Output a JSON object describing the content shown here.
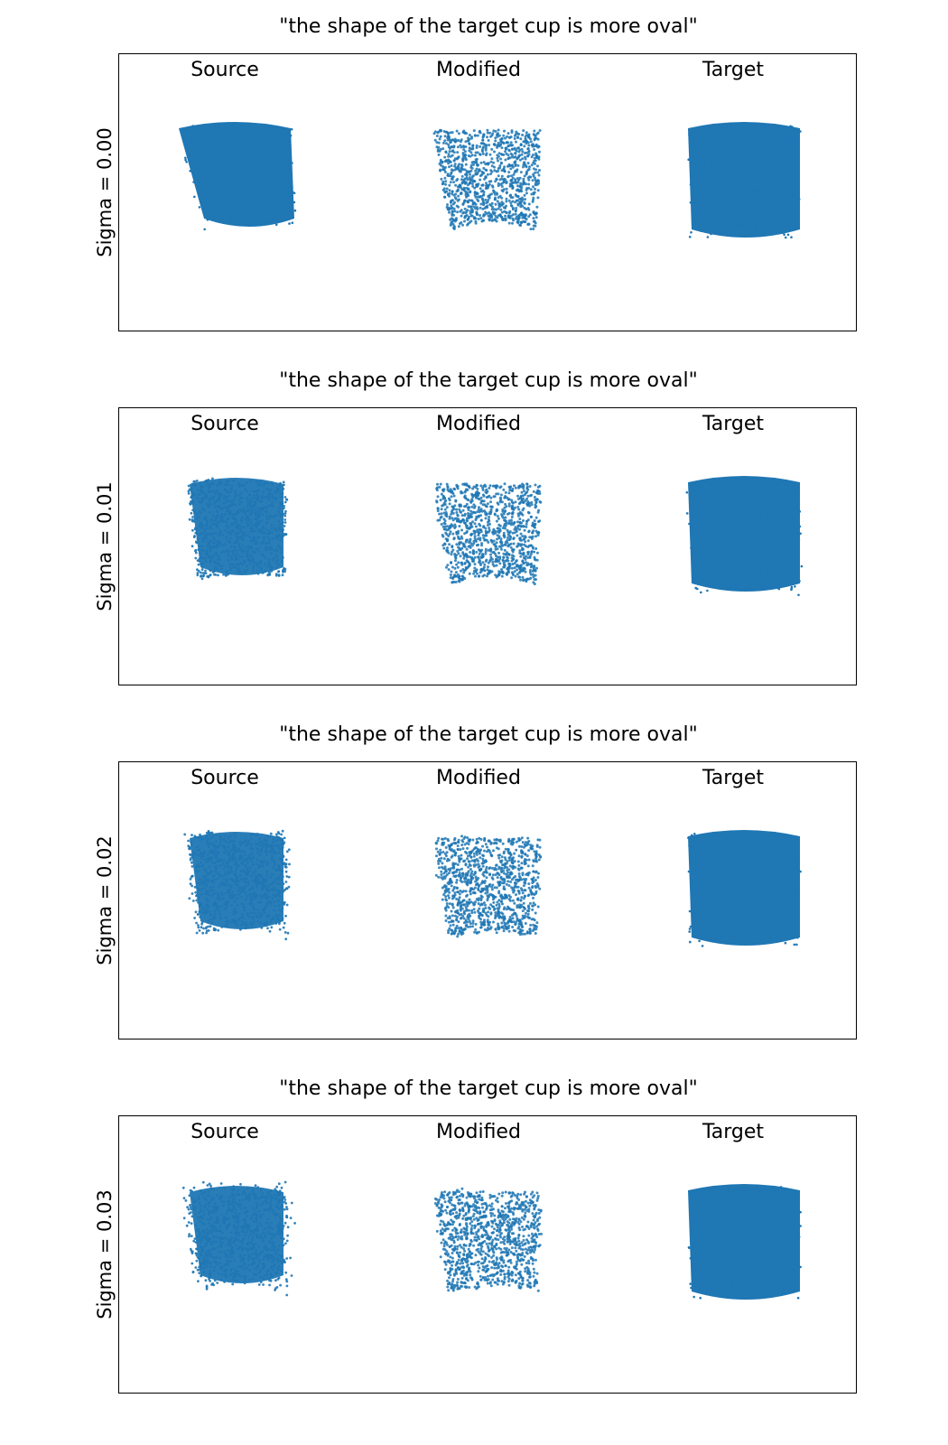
{
  "chart_data": {
    "type": "scatter",
    "title": "\"the shape of the target cup is more oval\"",
    "columns": [
      "Source",
      "Modified",
      "Target"
    ],
    "rows": [
      {
        "ylabel": "Sigma = 0.00",
        "sigma": 0.0
      },
      {
        "ylabel": "Sigma = 0.01",
        "sigma": 0.01
      },
      {
        "ylabel": "Sigma = 0.02",
        "sigma": 0.02
      },
      {
        "ylabel": "Sigma = 0.03",
        "sigma": 0.03
      }
    ],
    "marker_color": "#1f77b4",
    "grid": false,
    "ticks": false
  },
  "panels": [
    {
      "title": "\"the shape of the target cup is more oval\"",
      "ylabel": "Sigma = 0.00",
      "labels": {
        "source": "Source",
        "modified": "Modified",
        "target": "Target"
      }
    },
    {
      "title": "\"the shape of the target cup is more oval\"",
      "ylabel": "Sigma = 0.01",
      "labels": {
        "source": "Source",
        "modified": "Modified",
        "target": "Target"
      }
    },
    {
      "title": "\"the shape of the target cup is more oval\"",
      "ylabel": "Sigma = 0.02",
      "labels": {
        "source": "Source",
        "modified": "Modified",
        "target": "Target"
      }
    },
    {
      "title": "\"the shape of the target cup is more oval\"",
      "ylabel": "Sigma = 0.03",
      "labels": {
        "source": "Source",
        "modified": "Modified",
        "target": "Target"
      }
    }
  ]
}
